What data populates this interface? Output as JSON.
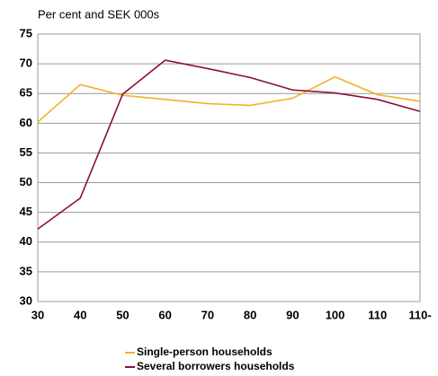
{
  "chart_data": {
    "type": "line",
    "subtitle": "Per cent and SEK 000s",
    "categories": [
      "30",
      "40",
      "50",
      "60",
      "70",
      "80",
      "90",
      "100",
      "110",
      "110-"
    ],
    "series": [
      {
        "name": "Single-person households",
        "color": "#f0b323",
        "values": [
          60.2,
          66.5,
          64.7,
          64.0,
          63.3,
          63.0,
          64.2,
          67.8,
          64.8,
          63.7
        ]
      },
      {
        "name": "Several borrowers households",
        "color": "#8b0d3a",
        "values": [
          42.2,
          47.4,
          64.9,
          70.6,
          69.2,
          67.7,
          65.6,
          65.1,
          64.0,
          62.0
        ]
      }
    ],
    "ylim": [
      30,
      75
    ],
    "yticks": [
      30,
      35,
      40,
      45,
      50,
      55,
      60,
      65,
      70,
      75
    ],
    "grid": true
  }
}
